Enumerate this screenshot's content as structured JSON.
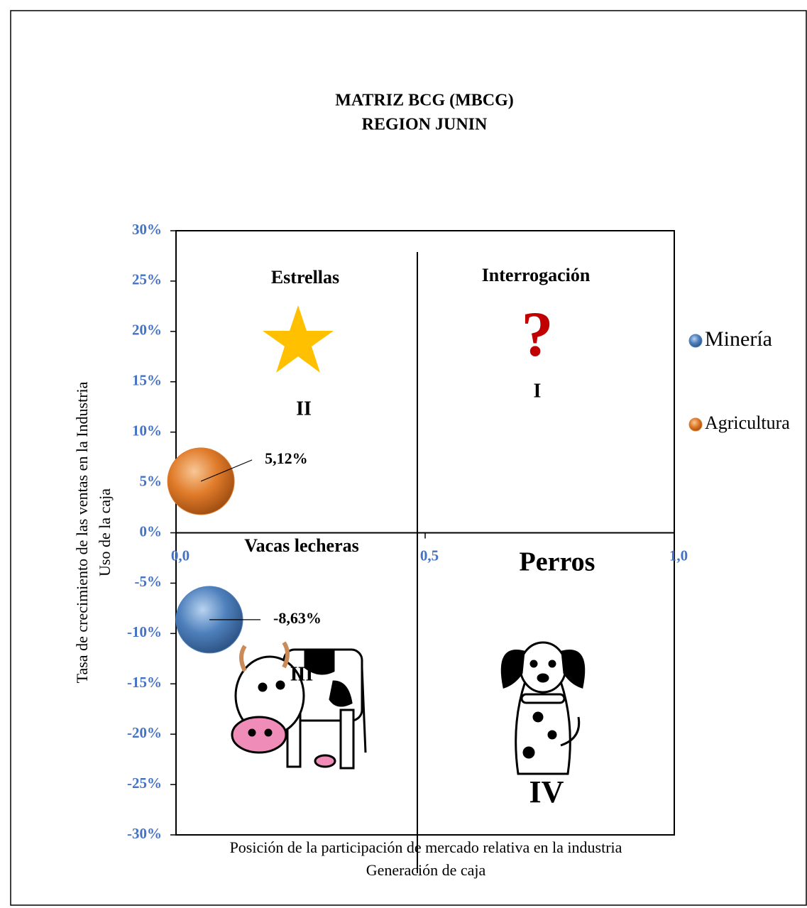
{
  "chart_data": {
    "type": "bubble",
    "title": "MATRIZ BCG (MBCG)",
    "subtitle": "REGION JUNIN",
    "x_label": [
      "Posición de la participación de mercado relativa en la industria",
      "Generación de caja"
    ],
    "y_label": [
      "Tasa de crecimiento de las ventas en la Industria",
      "Uso de la caja"
    ],
    "xlim": [
      0,
      1
    ],
    "xticks": [
      {
        "value": 0,
        "label": "0,0"
      },
      {
        "value": 0.5,
        "label": "0,5"
      },
      {
        "value": 1,
        "label": "1,0"
      }
    ],
    "ylim": [
      -30,
      30
    ],
    "yticks": [
      {
        "value": 30,
        "label": "30%"
      },
      {
        "value": 25,
        "label": "25%"
      },
      {
        "value": 20,
        "label": "20%"
      },
      {
        "value": 15,
        "label": "15%"
      },
      {
        "value": 10,
        "label": "10%"
      },
      {
        "value": 5,
        "label": "5%"
      },
      {
        "value": 0,
        "label": "0%"
      },
      {
        "value": -5,
        "label": "-5%"
      },
      {
        "value": -10,
        "label": "-10%"
      },
      {
        "value": -15,
        "label": "-15%"
      },
      {
        "value": -20,
        "label": "-20%"
      },
      {
        "value": -25,
        "label": "-25%"
      },
      {
        "value": -30,
        "label": "-30%"
      }
    ],
    "tick_color": "#4472c4",
    "legend": "right",
    "series": [
      {
        "name": "Minería",
        "color": "#4f81bd",
        "x": [
          0.067
        ],
        "values": [
          -8.63
        ],
        "value_labels": [
          "-8,63%"
        ]
      },
      {
        "name": "Agricultura",
        "color": "#e07b2a",
        "x": [
          0.05
        ],
        "values": [
          5.12
        ],
        "value_labels": [
          "5,12%"
        ]
      }
    ],
    "quadrants": [
      {
        "name": "Interrogación",
        "numeral": "I",
        "symbol": "?"
      },
      {
        "name": "Estrellas",
        "numeral": "II"
      },
      {
        "name": "Vacas lecheras",
        "numeral": "III"
      },
      {
        "name": "Perros",
        "numeral": "IV"
      }
    ]
  }
}
